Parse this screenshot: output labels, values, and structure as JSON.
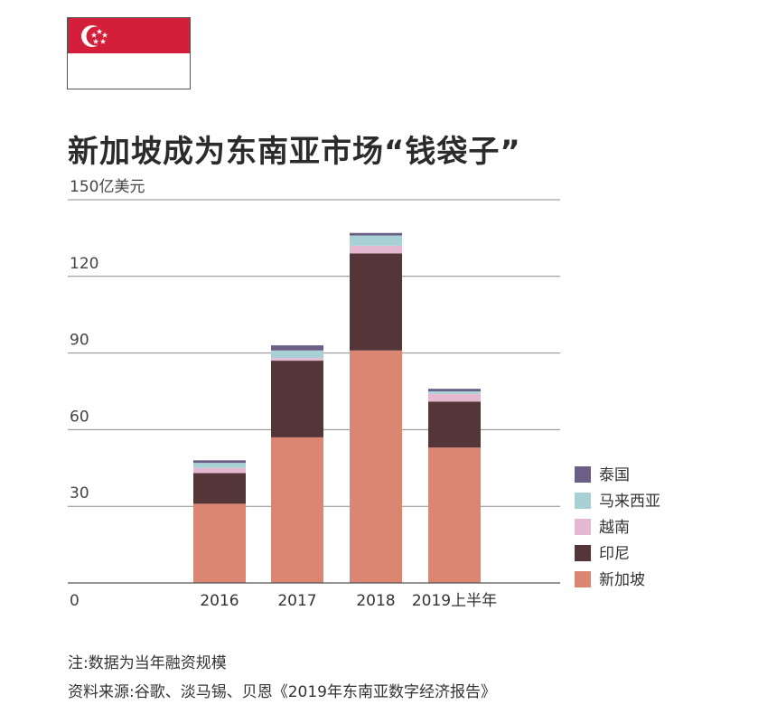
{
  "title": "新加坡成为东南亚市场“钱袋子”",
  "notes": {
    "note": "注:数据为当年融资规模",
    "source": "资料来源:谷歌、淡马锡、贝恩《2019年东南亚数字经济报告》"
  },
  "flag": {
    "red": "#d31f3a",
    "white": "#ffffff"
  },
  "chart_data": {
    "type": "bar",
    "stacked": true,
    "categories": [
      "2016",
      "2017",
      "2018",
      "2019上半年"
    ],
    "y_ticks": [
      "0",
      "30",
      "60",
      "90",
      "120",
      "150亿美元"
    ],
    "ylim": [
      0,
      150
    ],
    "grid": true,
    "legend_position": "right",
    "series": [
      {
        "name": "新加坡",
        "color": "#db8672",
        "values": [
          31,
          57,
          91,
          53
        ]
      },
      {
        "name": "印尼",
        "color": "#553638",
        "values": [
          12,
          30,
          38,
          18
        ]
      },
      {
        "name": "越南",
        "color": "#e3b8d0",
        "values": [
          2,
          1,
          3,
          3
        ]
      },
      {
        "name": "马来西亚",
        "color": "#a8d1d6",
        "values": [
          2,
          3,
          4,
          1
        ]
      },
      {
        "name": "泰国",
        "color": "#6b5f86",
        "values": [
          1,
          2,
          1,
          1
        ]
      }
    ]
  }
}
